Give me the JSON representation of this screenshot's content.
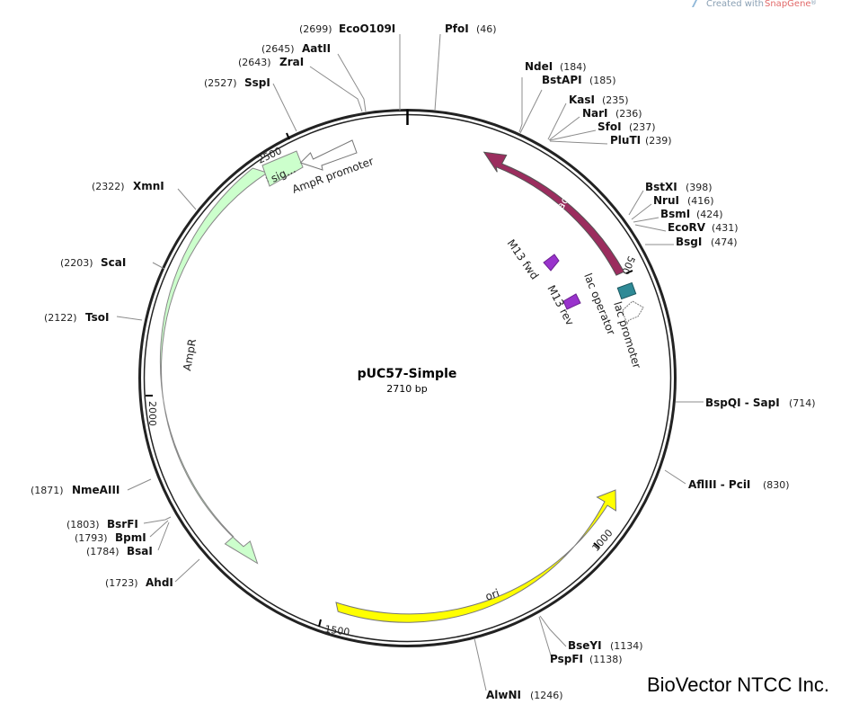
{
  "header": {
    "created_with": "Created with",
    "app_name": "SnapGene",
    "registered": "®"
  },
  "plasmid": {
    "name": "pUC57-Simple",
    "length_text": "2710 bp",
    "length_bp": 2710
  },
  "brand": "BioVector NTCC Inc.",
  "ruler_ticks": [
    {
      "bp": 500,
      "label": "500"
    },
    {
      "bp": 1000,
      "label": "1000"
    },
    {
      "bp": 1500,
      "label": "1500"
    },
    {
      "bp": 2000,
      "label": "2000"
    },
    {
      "bp": 2500,
      "label": "2500"
    }
  ],
  "sites": [
    {
      "name": "EcoO109I",
      "pos": "(2699)",
      "bp": 2699
    },
    {
      "name": "PfoI",
      "pos": "(46)",
      "bp": 46
    },
    {
      "name": "AatII",
      "pos": "(2645)",
      "bp": 2645
    },
    {
      "name": "ZraI",
      "pos": "(2643)",
      "bp": 2643
    },
    {
      "name": "SspI",
      "pos": "(2527)",
      "bp": 2527
    },
    {
      "name": "NdeI",
      "pos": "(184)",
      "bp": 184
    },
    {
      "name": "BstAPI",
      "pos": "(185)",
      "bp": 185
    },
    {
      "name": "KasI",
      "pos": "(235)",
      "bp": 235
    },
    {
      "name": "NarI",
      "pos": "(236)",
      "bp": 236
    },
    {
      "name": "SfoI",
      "pos": "(237)",
      "bp": 237
    },
    {
      "name": "PluTI",
      "pos": "(239)",
      "bp": 239
    },
    {
      "name": "BstXI",
      "pos": "(398)",
      "bp": 398
    },
    {
      "name": "NruI",
      "pos": "(416)",
      "bp": 416
    },
    {
      "name": "BsmI",
      "pos": "(424)",
      "bp": 424
    },
    {
      "name": "EcoRV",
      "pos": "(431)",
      "bp": 431
    },
    {
      "name": "BsgI",
      "pos": "(474)",
      "bp": 474
    },
    {
      "name": "XmnI",
      "pos": "(2322)",
      "bp": 2322
    },
    {
      "name": "ScaI",
      "pos": "(2203)",
      "bp": 2203
    },
    {
      "name": "TsoI",
      "pos": "(2122)",
      "bp": 2122
    },
    {
      "name": "BspQI - SapI",
      "pos": "(714)",
      "bp": 714
    },
    {
      "name": "AflIII - PciI",
      "pos": "(830)",
      "bp": 830
    },
    {
      "name": "NmeAIII",
      "pos": "(1871)",
      "bp": 1871
    },
    {
      "name": "BsrFI",
      "pos": "(1803)",
      "bp": 1803
    },
    {
      "name": "BpmI",
      "pos": "(1793)",
      "bp": 1793
    },
    {
      "name": "BsaI",
      "pos": "(1784)",
      "bp": 1784
    },
    {
      "name": "AhdI",
      "pos": "(1723)",
      "bp": 1723
    },
    {
      "name": "BseYI",
      "pos": "(1134)",
      "bp": 1134
    },
    {
      "name": "PspFI",
      "pos": "(1138)",
      "bp": 1138
    },
    {
      "name": "AlwNI",
      "pos": "(1246)",
      "bp": 1246
    }
  ],
  "features": {
    "lacZa": {
      "label": "lacZα",
      "color": "#9b2d5e",
      "start_bp": 125,
      "end_bp": 520
    },
    "ori": {
      "label": "ori",
      "color": "#ffff00",
      "start_bp": 1010,
      "end_bp": 1590
    },
    "AmpR": {
      "label": "AmpR",
      "color": "#ccffcc",
      "start_bp": 1760,
      "end_bp": 2490
    },
    "sig": {
      "label": "sig...",
      "color": "#ccffcc"
    },
    "AmpR_promoter": {
      "label": "AmpR promoter",
      "color": "#ffffff"
    },
    "M13_fwd": {
      "label": "M13 fwd",
      "color": "#9933cc"
    },
    "M13_rev": {
      "label": "M13 rev",
      "color": "#9933cc"
    },
    "lac_operator": {
      "label": "lac operator",
      "color": "#2f8a96"
    },
    "lac_promoter": {
      "label": "lac promoter",
      "color": "#ffffff"
    }
  }
}
